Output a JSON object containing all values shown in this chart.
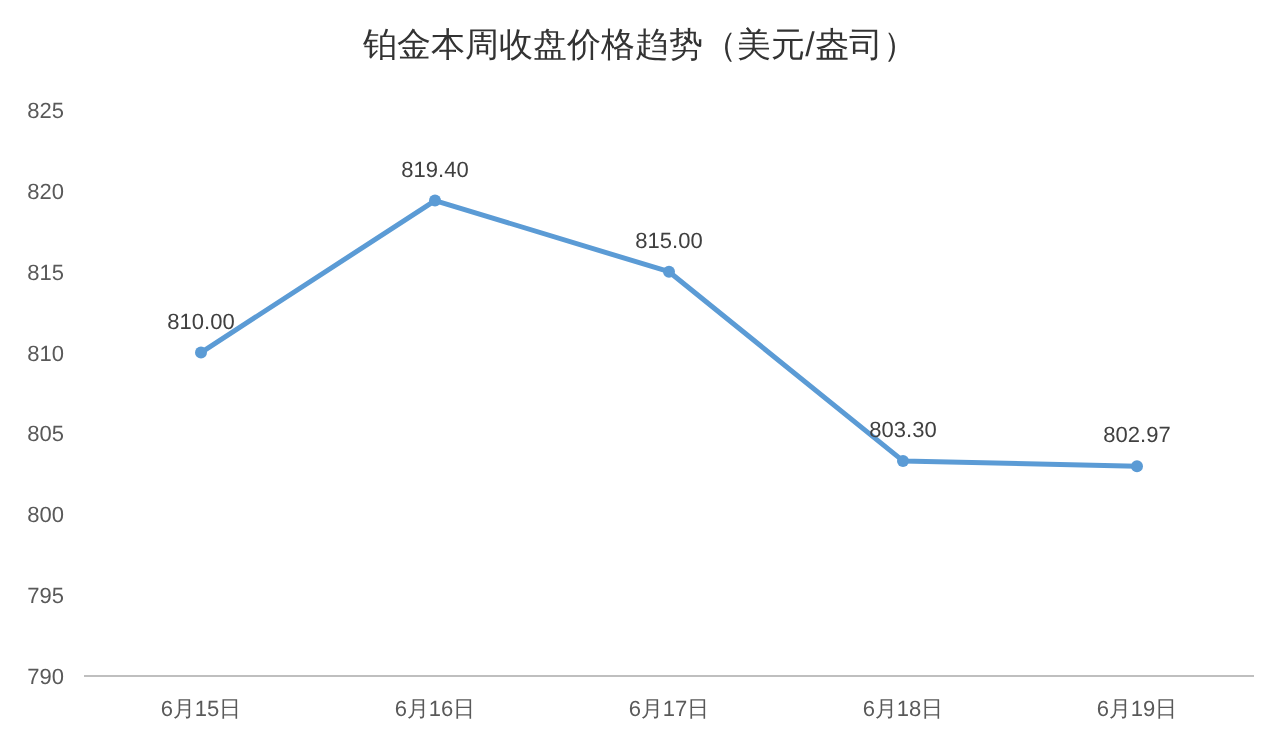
{
  "chart_data": {
    "type": "line",
    "title": "铂金本周收盘价格趋势（美元/盎司）",
    "categories": [
      "6月15日",
      "6月16日",
      "6月17日",
      "6月18日",
      "6月19日"
    ],
    "series": [
      {
        "color": "#5b9bd5",
        "values": [
          810,
          819.4,
          815,
          803.3,
          802.97
        ],
        "value_labels": [
          "810.00",
          "819.40",
          "815.00",
          "803.30",
          "802.97"
        ]
      }
    ],
    "ylim": [
      790,
      825
    ],
    "yticks": [
      790,
      795,
      800,
      805,
      810,
      815,
      820,
      825
    ],
    "marker": "circle",
    "line_style": "solid",
    "grid": false
  }
}
